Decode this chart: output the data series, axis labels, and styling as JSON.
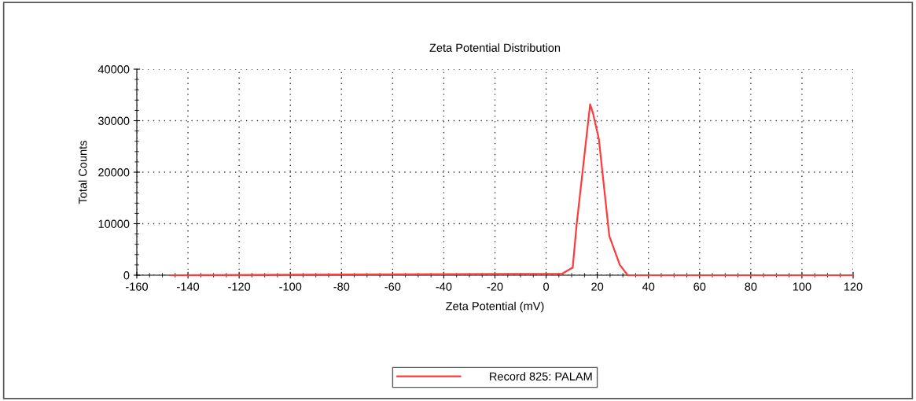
{
  "chart_data": {
    "type": "line",
    "title": "Zeta Potential Distribution",
    "xlabel": "Zeta Potential (mV)",
    "ylabel": "Total Counts",
    "series": [
      {
        "name": "Record 825: PALAM",
        "color": "#ff3b3b",
        "x": [
          -147,
          6.3,
          10.4,
          11.9,
          17.2,
          18.3,
          20.6,
          24.7,
          28.8,
          31.9,
          120
        ],
        "values": [
          0,
          300,
          1500,
          9700,
          33200,
          31500,
          26500,
          7600,
          2000,
          0,
          0
        ]
      }
    ],
    "xlim": [
      -160,
      120
    ],
    "xticks": [
      -160,
      -140,
      -120,
      -100,
      -80,
      -60,
      -40,
      -20,
      0,
      20,
      40,
      60,
      80,
      100,
      120
    ],
    "ylim": [
      0,
      40000
    ],
    "yticks": [
      0,
      10000,
      20000,
      30000,
      40000
    ],
    "grid": true,
    "legend": "bottom",
    "marker": "none",
    "line_style": "solid"
  }
}
